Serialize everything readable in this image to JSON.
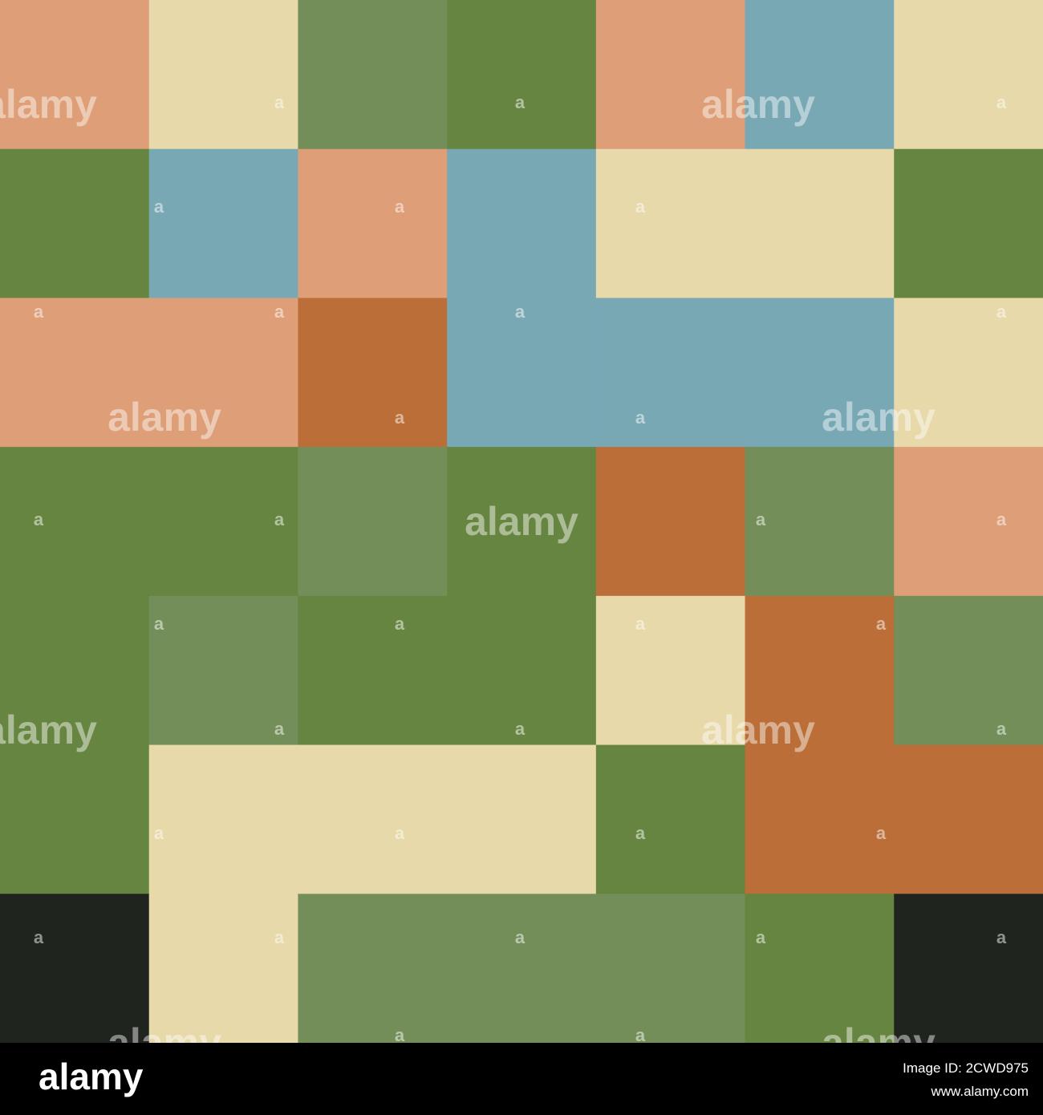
{
  "watermark": "alamy",
  "watermark_mark": "a",
  "footer": {
    "logo": "alamy",
    "image_id": "Image ID: 2CWD975",
    "url": "www.alamy.com"
  }
}
